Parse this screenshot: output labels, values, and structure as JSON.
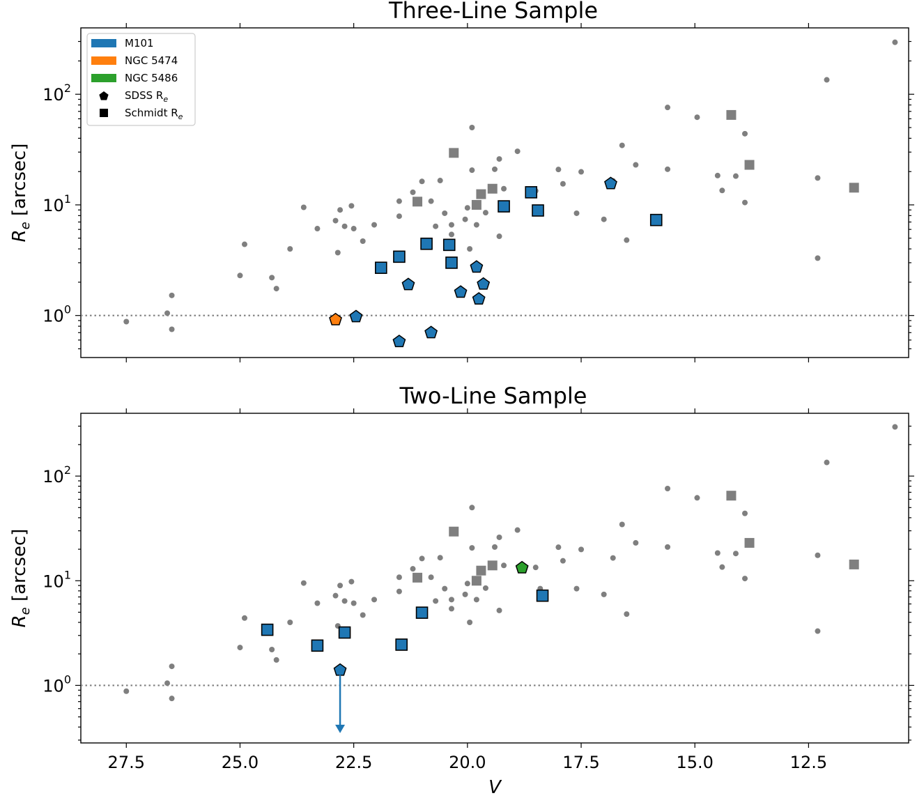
{
  "chart_data": [
    {
      "type": "scatter",
      "title": "Three-Line Sample",
      "ylabel": "R_e [arcsec]",
      "xlabel": "",
      "x_inverted": true,
      "xlim": [
        28.5,
        10.3
      ],
      "ylim_log10": [
        -0.38,
        2.6
      ],
      "yscale": "log",
      "xticks": [
        27.5,
        25.0,
        22.5,
        20.0,
        17.5,
        15.0,
        12.5
      ],
      "yticks": [
        1,
        10,
        100
      ],
      "reference_line": 1,
      "legend": {
        "placement": "top-left",
        "entries": [
          {
            "label": "M101",
            "marker": "patch",
            "color": "#1f77b4"
          },
          {
            "label": "NGC 5474",
            "marker": "patch",
            "color": "#ff7f0e"
          },
          {
            "label": "NGC 5486",
            "marker": "patch",
            "color": "#2ca02c"
          },
          {
            "label": "SDSS R",
            "sub": "e",
            "marker": "pentagon",
            "color": "#000000"
          },
          {
            "label": "Schmidt R",
            "sub": "e",
            "marker": "square",
            "color": "#000000"
          }
        ]
      },
      "series": [
        {
          "name": "background",
          "marker": "dot",
          "color": "#7f7f7f",
          "points": [
            [
              27.5,
              0.88
            ],
            [
              26.6,
              1.05
            ],
            [
              26.5,
              1.52
            ],
            [
              26.5,
              0.75
            ],
            [
              25.0,
              2.3
            ],
            [
              24.9,
              4.4
            ],
            [
              24.3,
              2.2
            ],
            [
              24.2,
              1.75
            ],
            [
              23.9,
              4.0
            ],
            [
              23.6,
              9.5
            ],
            [
              23.3,
              6.1
            ],
            [
              22.9,
              7.2
            ],
            [
              22.8,
              9.0
            ],
            [
              22.7,
              6.4
            ],
            [
              22.55,
              9.8
            ],
            [
              22.5,
              6.1
            ],
            [
              22.3,
              4.7
            ],
            [
              22.05,
              6.6
            ],
            [
              22.85,
              3.7
            ],
            [
              21.5,
              10.8
            ],
            [
              21.5,
              7.9
            ],
            [
              21.2,
              13.0
            ],
            [
              21.0,
              16.3
            ],
            [
              20.8,
              10.8
            ],
            [
              20.7,
              6.4
            ],
            [
              20.6,
              16.6
            ],
            [
              20.5,
              8.4
            ],
            [
              20.35,
              6.6
            ],
            [
              20.35,
              5.4
            ],
            [
              20.0,
              9.4
            ],
            [
              20.05,
              7.4
            ],
            [
              19.95,
              4.0
            ],
            [
              19.9,
              20.6
            ],
            [
              19.9,
              50.0
            ],
            [
              19.8,
              6.6
            ],
            [
              19.6,
              8.5
            ],
            [
              19.4,
              21.0
            ],
            [
              19.3,
              26.0
            ],
            [
              19.3,
              5.2
            ],
            [
              19.2,
              14.0
            ],
            [
              18.9,
              30.5
            ],
            [
              18.5,
              13.4
            ],
            [
              18.4,
              8.4
            ],
            [
              18.0,
              20.9
            ],
            [
              17.9,
              15.5
            ],
            [
              17.6,
              8.4
            ],
            [
              17.5,
              19.9
            ],
            [
              17.0,
              7.4
            ],
            [
              16.8,
              16.5
            ],
            [
              16.6,
              34.5
            ],
            [
              16.5,
              4.8
            ],
            [
              16.3,
              23.0
            ],
            [
              15.6,
              76.0
            ],
            [
              15.6,
              21.0
            ],
            [
              14.95,
              62.0
            ],
            [
              14.5,
              18.4
            ],
            [
              14.4,
              13.5
            ],
            [
              14.1,
              18.2
            ],
            [
              13.9,
              44.0
            ],
            [
              13.9,
              10.5
            ],
            [
              12.3,
              3.3
            ],
            [
              12.3,
              17.5
            ],
            [
              12.1,
              135.0
            ],
            [
              10.6,
              295.0
            ]
          ]
        },
        {
          "name": "background-schmidt",
          "marker": "square",
          "color": "#7f7f7f",
          "points": [
            [
              21.1,
              10.7
            ],
            [
              20.3,
              29.5
            ],
            [
              19.8,
              10.0
            ],
            [
              19.7,
              12.5
            ],
            [
              19.45,
              14.0
            ],
            [
              14.2,
              65.0
            ],
            [
              13.8,
              23.0
            ],
            [
              11.5,
              14.3
            ]
          ]
        },
        {
          "name": "M101",
          "marker": "square",
          "color": "#1f77b4",
          "points": [
            [
              21.9,
              2.7
            ],
            [
              21.5,
              3.4
            ],
            [
              20.9,
              4.45
            ],
            [
              20.4,
              4.35
            ],
            [
              20.35,
              3.0
            ],
            [
              19.2,
              9.7
            ],
            [
              18.6,
              13.0
            ],
            [
              18.45,
              8.9
            ],
            [
              15.85,
              7.3
            ]
          ]
        },
        {
          "name": "M101",
          "marker": "pentagon",
          "color": "#1f77b4",
          "points": [
            [
              22.45,
              0.99
            ],
            [
              21.5,
              0.59
            ],
            [
              21.3,
              1.93
            ],
            [
              20.8,
              0.71
            ],
            [
              20.15,
              1.65
            ],
            [
              19.8,
              2.78
            ],
            [
              19.75,
              1.43
            ],
            [
              19.65,
              1.95
            ],
            [
              16.85,
              15.8
            ]
          ]
        },
        {
          "name": "NGC 5474",
          "marker": "pentagon",
          "color": "#ff7f0e",
          "points": [
            [
              22.9,
              0.93
            ]
          ]
        }
      ]
    },
    {
      "type": "scatter",
      "title": "Two-Line Sample",
      "ylabel": "R_e [arcsec]",
      "xlabel": "V",
      "x_inverted": true,
      "xlim": [
        28.5,
        10.3
      ],
      "ylim_log10": [
        -0.55,
        2.6
      ],
      "yscale": "log",
      "xticks": [
        27.5,
        25.0,
        22.5,
        20.0,
        17.5,
        15.0,
        12.5
      ],
      "yticks": [
        1,
        10,
        100
      ],
      "reference_line": 1,
      "series": [
        {
          "name": "background",
          "marker": "dot",
          "color": "#7f7f7f",
          "points": [
            [
              27.5,
              0.88
            ],
            [
              26.6,
              1.05
            ],
            [
              26.5,
              1.52
            ],
            [
              26.5,
              0.75
            ],
            [
              25.0,
              2.3
            ],
            [
              24.9,
              4.4
            ],
            [
              24.3,
              2.2
            ],
            [
              24.2,
              1.75
            ],
            [
              23.9,
              4.0
            ],
            [
              23.6,
              9.5
            ],
            [
              23.3,
              6.1
            ],
            [
              22.9,
              7.2
            ],
            [
              22.8,
              9.0
            ],
            [
              22.7,
              6.4
            ],
            [
              22.55,
              9.8
            ],
            [
              22.5,
              6.1
            ],
            [
              22.3,
              4.7
            ],
            [
              22.05,
              6.6
            ],
            [
              22.85,
              3.7
            ],
            [
              21.5,
              10.8
            ],
            [
              21.5,
              7.9
            ],
            [
              21.2,
              13.0
            ],
            [
              21.0,
              16.3
            ],
            [
              20.8,
              10.8
            ],
            [
              20.7,
              6.4
            ],
            [
              20.6,
              16.6
            ],
            [
              20.5,
              8.4
            ],
            [
              20.35,
              6.6
            ],
            [
              20.35,
              5.4
            ],
            [
              20.0,
              9.4
            ],
            [
              20.05,
              7.4
            ],
            [
              19.95,
              4.0
            ],
            [
              19.9,
              20.6
            ],
            [
              19.9,
              50.0
            ],
            [
              19.8,
              6.6
            ],
            [
              19.6,
              8.5
            ],
            [
              19.4,
              21.0
            ],
            [
              19.3,
              26.0
            ],
            [
              19.3,
              5.2
            ],
            [
              19.2,
              14.0
            ],
            [
              18.9,
              30.5
            ],
            [
              18.5,
              13.4
            ],
            [
              18.4,
              8.4
            ],
            [
              18.0,
              20.9
            ],
            [
              17.9,
              15.5
            ],
            [
              17.6,
              8.4
            ],
            [
              17.5,
              19.9
            ],
            [
              17.0,
              7.4
            ],
            [
              16.8,
              16.5
            ],
            [
              16.6,
              34.5
            ],
            [
              16.5,
              4.8
            ],
            [
              16.3,
              23.0
            ],
            [
              15.6,
              76.0
            ],
            [
              15.6,
              21.0
            ],
            [
              14.95,
              62.0
            ],
            [
              14.5,
              18.4
            ],
            [
              14.4,
              13.5
            ],
            [
              14.1,
              18.2
            ],
            [
              13.9,
              44.0
            ],
            [
              13.9,
              10.5
            ],
            [
              12.3,
              3.3
            ],
            [
              12.3,
              17.5
            ],
            [
              12.1,
              135.0
            ],
            [
              10.6,
              295.0
            ]
          ]
        },
        {
          "name": "background-schmidt",
          "marker": "square",
          "color": "#7f7f7f",
          "points": [
            [
              21.1,
              10.7
            ],
            [
              20.3,
              29.5
            ],
            [
              19.8,
              10.0
            ],
            [
              19.7,
              12.5
            ],
            [
              19.45,
              14.0
            ],
            [
              14.2,
              65.0
            ],
            [
              13.8,
              23.0
            ],
            [
              11.5,
              14.3
            ]
          ]
        },
        {
          "name": "M101",
          "marker": "square",
          "color": "#1f77b4",
          "points": [
            [
              24.4,
              3.4
            ],
            [
              23.3,
              2.4
            ],
            [
              22.7,
              3.2
            ],
            [
              21.45,
              2.45
            ],
            [
              21.0,
              4.95
            ],
            [
              18.35,
              7.2
            ]
          ]
        },
        {
          "name": "M101",
          "marker": "pentagon",
          "color": "#1f77b4",
          "points": [
            [
              22.8,
              1.42
            ]
          ]
        },
        {
          "name": "NGC 5486",
          "marker": "pentagon",
          "color": "#2ca02c",
          "points": [
            [
              18.8,
              13.5
            ]
          ]
        }
      ],
      "upper_limits": [
        {
          "x": 22.8,
          "from": 1.42,
          "to": 0.35,
          "color": "#1f77b4"
        }
      ]
    }
  ]
}
